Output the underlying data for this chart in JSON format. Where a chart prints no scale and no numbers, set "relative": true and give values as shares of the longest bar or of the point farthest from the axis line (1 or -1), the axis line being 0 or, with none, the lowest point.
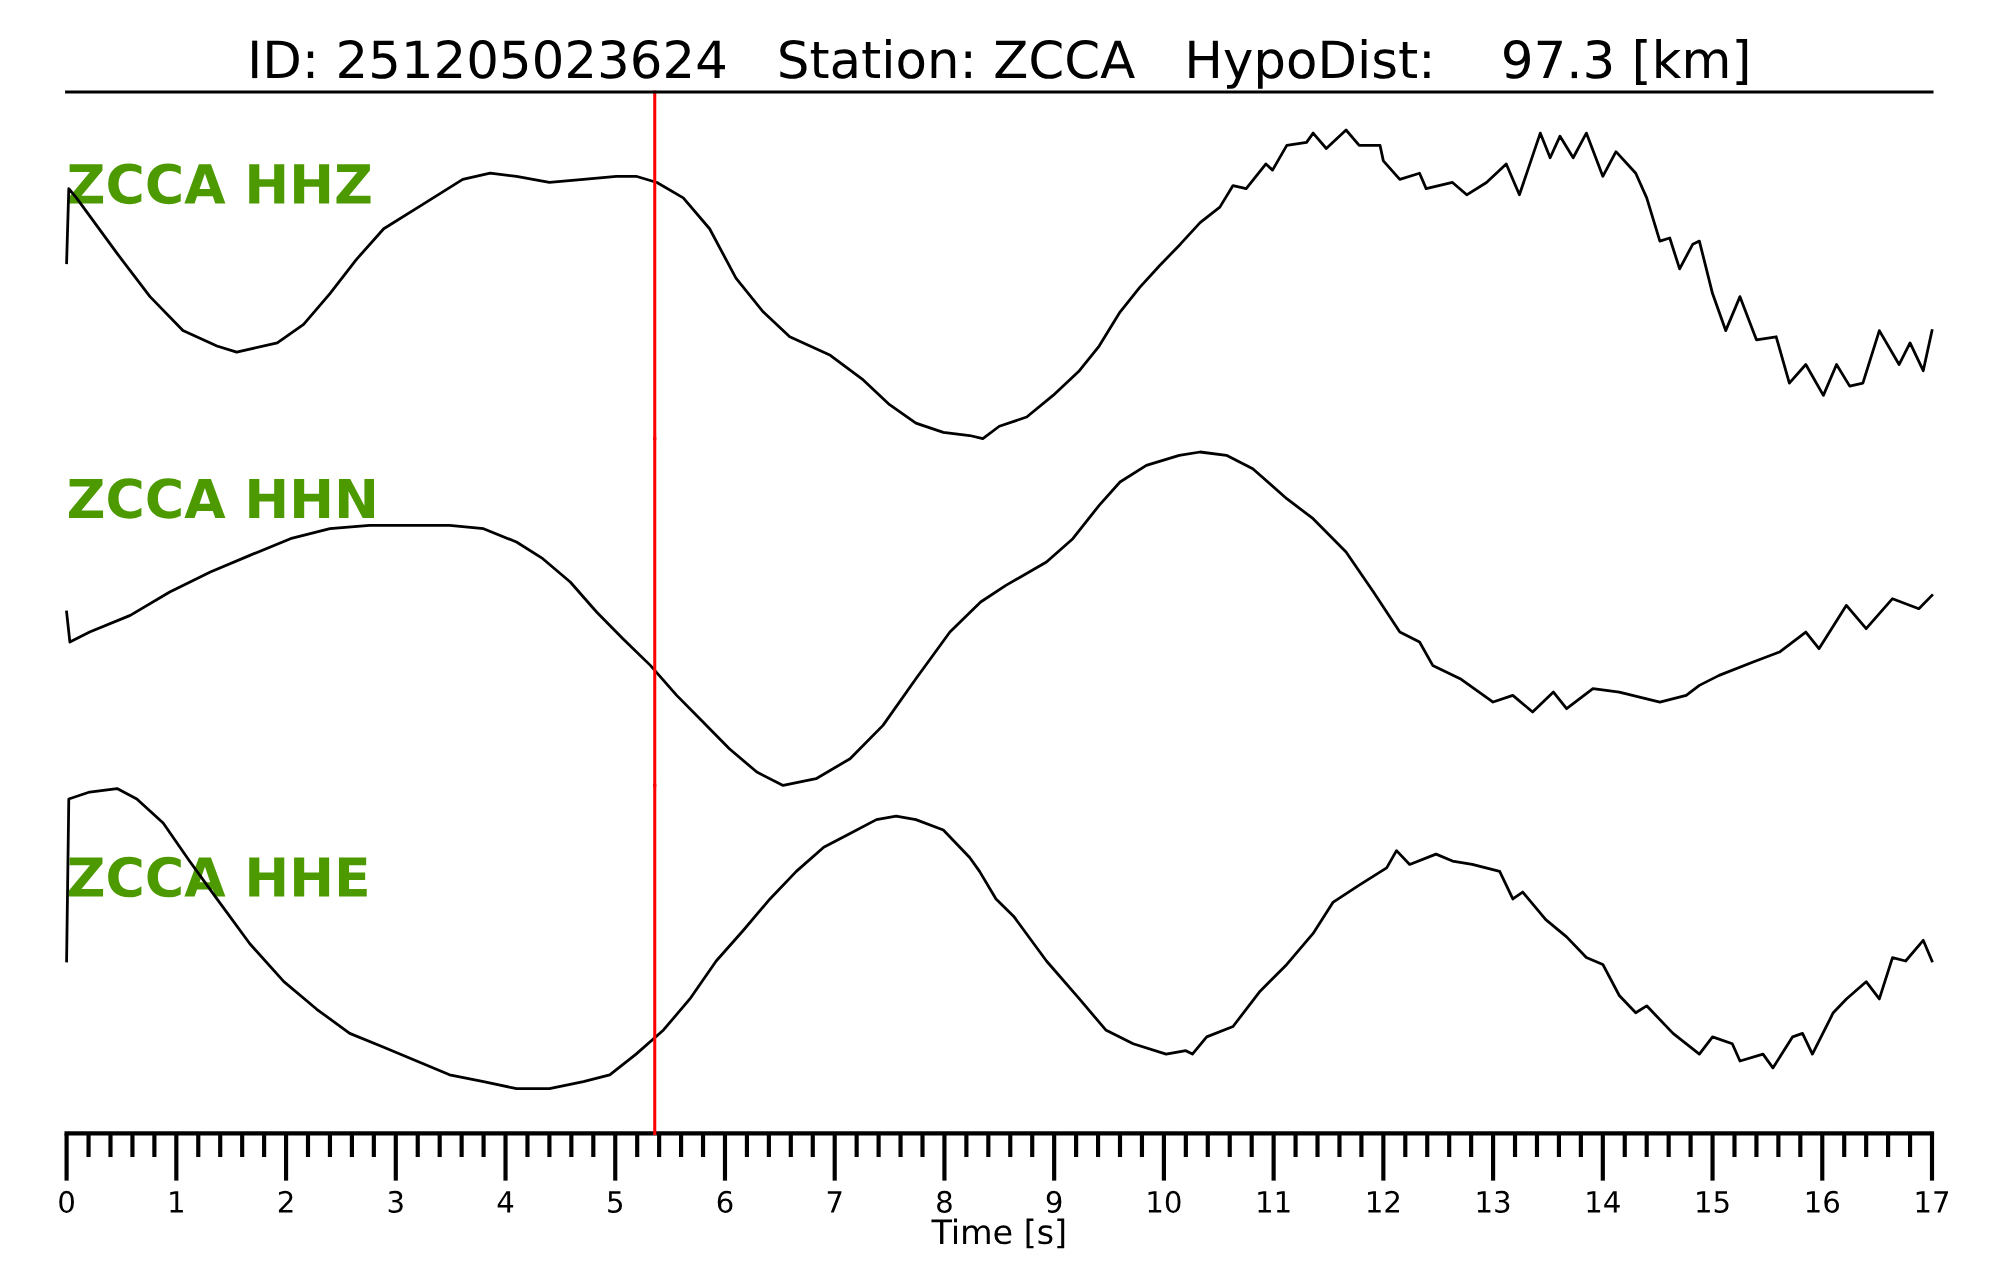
{
  "chart_data": [
    {
      "type": "line",
      "title": "ID: 251205023624   Station: ZCCA   HypoDist:    97.3 [km]",
      "relative": true,
      "xlim": [
        0,
        17
      ],
      "tick_labels": false,
      "x": [
        0,
        0.02,
        0.09,
        0.46,
        0.76,
        1.06,
        1.37,
        1.55,
        1.67,
        1.92,
        2.16,
        2.4,
        2.64,
        2.89,
        3.25,
        3.61,
        3.86,
        4.1,
        4.4,
        4.71,
        5.01,
        5.19,
        5.38,
        5.62,
        5.86,
        6.1,
        6.35,
        6.59,
        6.96,
        7.26,
        7.5,
        7.74,
        7.99,
        8.23,
        8.35,
        8.5,
        8.75,
        8.99,
        9.23,
        9.41,
        9.6,
        9.78,
        9.96,
        10.15,
        10.33,
        10.51,
        10.63,
        10.75,
        10.93,
        10.99,
        11.12,
        11.3,
        11.36,
        11.48,
        11.66,
        11.78,
        11.97,
        12.0,
        12.15,
        12.33,
        12.39,
        12.63,
        12.76,
        12.94,
        13.12,
        13.24,
        13.43,
        13.52,
        13.61,
        13.73,
        13.85,
        14.0,
        14.12,
        14.3,
        14.4,
        14.52,
        14.61,
        14.7,
        14.82,
        14.88,
        15.0,
        15.12,
        15.25,
        15.4,
        15.58,
        15.7,
        15.85,
        16.01,
        16.13,
        16.25,
        16.37,
        16.52,
        16.7,
        16.8,
        16.92,
        17.0
      ],
      "series": [
        {
          "name": "ZCCA HHZ",
          "color": "#000000",
          "values": [
            0.57,
            0.81,
            0.78,
            0.6,
            0.46,
            0.35,
            0.3,
            0.28,
            0.29,
            0.31,
            0.37,
            0.47,
            0.58,
            0.68,
            0.76,
            0.84,
            0.86,
            0.85,
            0.83,
            0.84,
            0.85,
            0.85,
            0.83,
            0.78,
            0.68,
            0.52,
            0.41,
            0.33,
            0.27,
            0.19,
            0.11,
            0.05,
            0.02,
            0.01,
            0,
            0.04,
            0.07,
            0.14,
            0.22,
            0.3,
            0.41,
            0.49,
            0.56,
            0.63,
            0.7,
            0.75,
            0.82,
            0.81,
            0.89,
            0.87,
            0.95,
            0.96,
            0.99,
            0.94,
            1.0,
            0.95,
            0.95,
            0.9,
            0.84,
            0.86,
            0.81,
            0.83,
            0.79,
            0.83,
            0.89,
            0.79,
            0.99,
            0.91,
            0.98,
            0.91,
            0.99,
            0.85,
            0.93,
            0.86,
            0.78,
            0.64,
            0.65,
            0.55,
            0.63,
            0.64,
            0.47,
            0.35,
            0.46,
            0.32,
            0.33,
            0.18,
            0.24,
            0.14,
            0.24,
            0.17,
            0.18,
            0.35,
            0.24,
            0.31,
            0.22,
            0.35
          ]
        }
      ],
      "ref_lines": [
        {
          "axis": "x",
          "value": 5.36,
          "color": "#ff0000"
        }
      ]
    },
    {
      "type": "line",
      "relative": true,
      "xlim": [
        0,
        17
      ],
      "tick_labels": false,
      "x": [
        0,
        0.03,
        0.21,
        0.58,
        0.94,
        1.31,
        1.67,
        2.04,
        2.4,
        2.76,
        3.13,
        3.49,
        3.8,
        4.1,
        4.34,
        4.59,
        4.83,
        5.07,
        5.32,
        5.56,
        5.8,
        6.04,
        6.29,
        6.53,
        6.83,
        7.14,
        7.44,
        7.74,
        8.05,
        8.33,
        8.56,
        8.93,
        9.17,
        9.41,
        9.6,
        9.84,
        10.14,
        10.33,
        10.57,
        10.81,
        11.12,
        11.36,
        11.66,
        11.91,
        12.15,
        12.33,
        12.45,
        12.7,
        13.0,
        13.18,
        13.36,
        13.55,
        13.67,
        13.91,
        14.15,
        14.52,
        14.76,
        14.88,
        15.06,
        15.37,
        15.61,
        15.85,
        15.97,
        16.22,
        16.4,
        16.64,
        16.88,
        17.0
      ],
      "series": [
        {
          "name": "ZCCA HHN",
          "color": "#000000",
          "values": [
            0.52,
            0.43,
            0.46,
            0.51,
            0.58,
            0.64,
            0.69,
            0.74,
            0.77,
            0.78,
            0.78,
            0.78,
            0.77,
            0.73,
            0.68,
            0.61,
            0.52,
            0.44,
            0.36,
            0.27,
            0.19,
            0.11,
            0.04,
            0,
            0.02,
            0.08,
            0.18,
            0.32,
            0.46,
            0.55,
            0.6,
            0.67,
            0.74,
            0.84,
            0.91,
            0.96,
            0.99,
            1.0,
            0.99,
            0.95,
            0.86,
            0.8,
            0.7,
            0.58,
            0.46,
            0.43,
            0.36,
            0.32,
            0.25,
            0.27,
            0.22,
            0.28,
            0.23,
            0.29,
            0.28,
            0.25,
            0.27,
            0.3,
            0.33,
            0.37,
            0.4,
            0.46,
            0.41,
            0.54,
            0.47,
            0.56,
            0.53,
            0.57
          ]
        }
      ],
      "ref_lines": [
        {
          "axis": "x",
          "value": 5.36,
          "color": "#ff0000"
        }
      ]
    },
    {
      "type": "line",
      "xlabel": "Time [s]",
      "relative": true,
      "xlim": [
        0,
        17
      ],
      "tick_labels": "x",
      "xticks": [
        0,
        {
          "value": 0.2,
          "label": null
        },
        {
          "value": 0.4,
          "label": null
        },
        {
          "value": 0.6,
          "label": null
        },
        {
          "value": 0.8,
          "label": null
        },
        1,
        {
          "value": 1.2,
          "label": null
        },
        {
          "value": 1.4,
          "label": null
        },
        {
          "value": 1.6,
          "label": null
        },
        {
          "value": 1.8,
          "label": null
        },
        2,
        {
          "value": 2.2,
          "label": null
        },
        {
          "value": 2.4,
          "label": null
        },
        {
          "value": 2.6,
          "label": null
        },
        {
          "value": 2.8,
          "label": null
        },
        3,
        {
          "value": 3.2,
          "label": null
        },
        {
          "value": 3.4,
          "label": null
        },
        {
          "value": 3.6,
          "label": null
        },
        {
          "value": 3.8,
          "label": null
        },
        4,
        {
          "value": 4.2,
          "label": null
        },
        {
          "value": 4.4,
          "label": null
        },
        {
          "value": 4.6,
          "label": null
        },
        {
          "value": 4.8,
          "label": null
        },
        5,
        {
          "value": 5.2,
          "label": null
        },
        {
          "value": 5.4,
          "label": null
        },
        {
          "value": 5.6,
          "label": null
        },
        {
          "value": 5.8,
          "label": null
        },
        6,
        {
          "value": 6.2,
          "label": null
        },
        {
          "value": 6.4,
          "label": null
        },
        {
          "value": 6.6,
          "label": null
        },
        {
          "value": 6.8,
          "label": null
        },
        7,
        {
          "value": 7.2,
          "label": null
        },
        {
          "value": 7.4,
          "label": null
        },
        {
          "value": 7.6,
          "label": null
        },
        {
          "value": 7.8,
          "label": null
        },
        8,
        {
          "value": 8.2,
          "label": null
        },
        {
          "value": 8.4,
          "label": null
        },
        {
          "value": 8.6,
          "label": null
        },
        {
          "value": 8.8,
          "label": null
        },
        9,
        {
          "value": 9.2,
          "label": null
        },
        {
          "value": 9.4,
          "label": null
        },
        {
          "value": 9.6,
          "label": null
        },
        {
          "value": 9.8,
          "label": null
        },
        10,
        {
          "value": 10.2,
          "label": null
        },
        {
          "value": 10.4,
          "label": null
        },
        {
          "value": 10.6,
          "label": null
        },
        {
          "value": 10.8,
          "label": null
        },
        11,
        {
          "value": 11.2,
          "label": null
        },
        {
          "value": 11.4,
          "label": null
        },
        {
          "value": 11.6,
          "label": null
        },
        {
          "value": 11.8,
          "label": null
        },
        12,
        {
          "value": 12.2,
          "label": null
        },
        {
          "value": 12.4,
          "label": null
        },
        {
          "value": 12.6,
          "label": null
        },
        {
          "value": 12.8,
          "label": null
        },
        13,
        {
          "value": 13.2,
          "label": null
        },
        {
          "value": 13.4,
          "label": null
        },
        {
          "value": 13.6,
          "label": null
        },
        {
          "value": 13.8,
          "label": null
        },
        14,
        {
          "value": 14.2,
          "label": null
        },
        {
          "value": 14.4,
          "label": null
        },
        {
          "value": 14.6,
          "label": null
        },
        {
          "value": 14.8,
          "label": null
        },
        15,
        {
          "value": 15.2,
          "label": null
        },
        {
          "value": 15.4,
          "label": null
        },
        {
          "value": 15.6,
          "label": null
        },
        {
          "value": 15.8,
          "label": null
        },
        16,
        {
          "value": 16.2,
          "label": null
        },
        {
          "value": 16.4,
          "label": null
        },
        {
          "value": 16.6,
          "label": null
        },
        {
          "value": 16.8,
          "label": null
        },
        17
      ],
      "x": [
        0,
        0.02,
        0.21,
        0.46,
        0.64,
        0.88,
        1.12,
        1.37,
        1.67,
        1.98,
        2.28,
        2.58,
        2.89,
        3.19,
        3.49,
        3.8,
        4.1,
        4.4,
        4.71,
        4.95,
        5.19,
        5.44,
        5.68,
        5.92,
        6.17,
        6.41,
        6.65,
        6.9,
        7.14,
        7.38,
        7.56,
        7.74,
        7.99,
        8.23,
        8.32,
        8.47,
        8.63,
        8.93,
        9.23,
        9.47,
        9.72,
        10.02,
        10.2,
        10.26,
        10.39,
        10.63,
        10.87,
        11.12,
        11.36,
        11.54,
        11.78,
        12.03,
        12.12,
        12.24,
        12.48,
        12.63,
        12.81,
        13.06,
        13.18,
        13.27,
        13.48,
        13.67,
        13.85,
        14.0,
        14.15,
        14.3,
        14.4,
        14.64,
        14.88,
        15.0,
        15.18,
        15.25,
        15.46,
        15.55,
        15.73,
        15.82,
        15.91,
        16.1,
        16.22,
        16.4,
        16.52,
        16.64,
        16.76,
        16.92,
        17.0
      ],
      "series": [
        {
          "name": "ZCCA HHE",
          "color": "#000000",
          "values": [
            0.5,
            0.97,
            0.99,
            1.0,
            0.97,
            0.9,
            0.79,
            0.68,
            0.55,
            0.44,
            0.36,
            0.29,
            0.25,
            0.21,
            0.17,
            0.15,
            0.13,
            0.13,
            0.15,
            0.17,
            0.23,
            0.3,
            0.39,
            0.5,
            0.59,
            0.68,
            0.76,
            0.83,
            0.87,
            0.91,
            0.92,
            0.91,
            0.88,
            0.8,
            0.76,
            0.68,
            0.63,
            0.5,
            0.39,
            0.3,
            0.26,
            0.23,
            0.24,
            0.23,
            0.28,
            0.31,
            0.41,
            0.49,
            0.58,
            0.67,
            0.72,
            0.77,
            0.82,
            0.78,
            0.81,
            0.79,
            0.78,
            0.76,
            0.68,
            0.7,
            0.62,
            0.57,
            0.51,
            0.49,
            0.4,
            0.35,
            0.37,
            0.29,
            0.23,
            0.28,
            0.26,
            0.21,
            0.23,
            0.19,
            0.28,
            0.29,
            0.23,
            0.35,
            0.39,
            0.44,
            0.39,
            0.51,
            0.5,
            0.56,
            0.5
          ]
        }
      ],
      "ref_lines": [
        {
          "axis": "x",
          "value": 5.36,
          "color": "#ff0000"
        }
      ]
    }
  ]
}
